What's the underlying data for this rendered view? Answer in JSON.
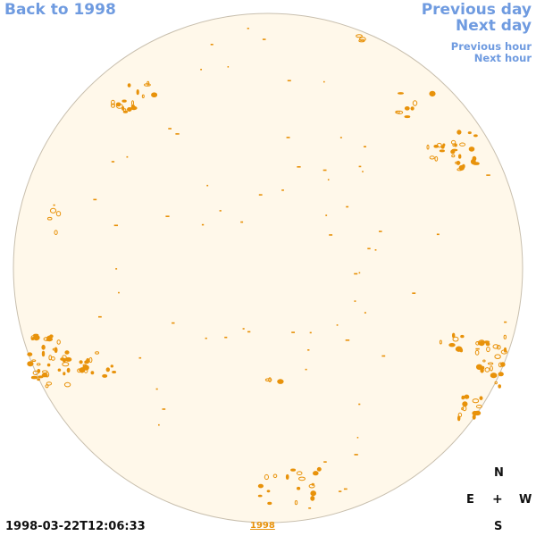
{
  "nav": {
    "back": "Back to 1998",
    "previous_day": "Previous day",
    "next_day": "Next day",
    "previous_hour": "Previous hour",
    "next_hour": "Next hour"
  },
  "timestamp": "1998-03-22T12:06:33",
  "year_link": "1998",
  "compass": {
    "north": "N",
    "east": "E",
    "center": "+",
    "west": "W",
    "south": "S"
  },
  "colors": {
    "disk_fill": "#fff8ea",
    "disk_edge": "#c8bfae",
    "feature": "#e8920a",
    "link": "#6f9be0"
  }
}
